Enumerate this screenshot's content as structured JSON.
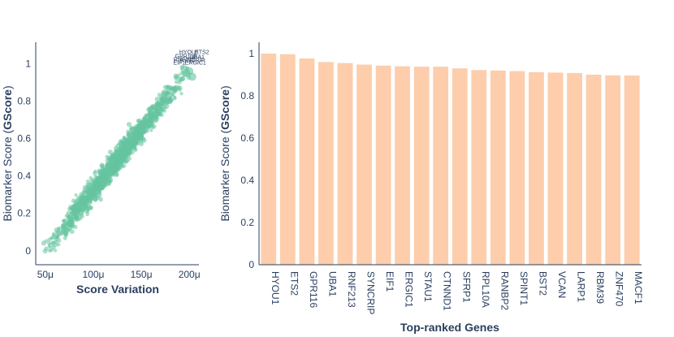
{
  "chart_data": [
    {
      "type": "scatter",
      "xlabel": "Score Variation",
      "ylabel_plain": "Biomarker Score (",
      "ylabel_bold": "GScore",
      "ylabel_close": ")",
      "xlim": [
        4e-05,
        0.00021
      ],
      "ylim": [
        -0.04,
        1.08
      ],
      "x_ticks": [
        {
          "value": 5e-05,
          "label": "50μ"
        },
        {
          "value": 0.0001,
          "label": "100μ"
        },
        {
          "value": 0.00015,
          "label": "150μ"
        },
        {
          "value": 0.0002,
          "label": "200μ"
        }
      ],
      "y_ticks": [
        {
          "value": 0,
          "label": "0"
        },
        {
          "value": 0.2,
          "label": "0.2"
        },
        {
          "value": 0.4,
          "label": "0.4"
        },
        {
          "value": 0.6,
          "label": "0.6"
        },
        {
          "value": 0.8,
          "label": "0.8"
        },
        {
          "value": 1,
          "label": "1"
        }
      ],
      "marker_color": "#66c5a0",
      "point_count": 1400,
      "trend": {
        "x_start": 5e-05,
        "y_start": 0.0,
        "x_end": 0.0002,
        "y_end": 0.97
      },
      "highlight_points": [
        {
          "x": 0.000203,
          "y": 0.93
        },
        {
          "x": 0.0002,
          "y": 0.96
        },
        {
          "x": 0.000197,
          "y": 0.95
        },
        {
          "x": 0.000195,
          "y": 0.97
        }
      ],
      "annotations": [
        "HYOU1",
        "ETS2",
        "GPR116",
        "UBA1",
        "RNF213",
        "SYNCRIP",
        "EIF1",
        "ERGIC1"
      ]
    },
    {
      "type": "bar",
      "xlabel": "Top-ranked Genes",
      "ylabel_plain": "Biomarker Score (",
      "ylabel_bold": "GScore",
      "ylabel_close": ")",
      "ylim": [
        0,
        1.05
      ],
      "bar_color": "#fdcdac",
      "y_ticks": [
        {
          "value": 0,
          "label": "0"
        },
        {
          "value": 0.2,
          "label": "0.2"
        },
        {
          "value": 0.4,
          "label": "0.4"
        },
        {
          "value": 0.6,
          "label": "0.6"
        },
        {
          "value": 0.8,
          "label": "0.8"
        },
        {
          "value": 1,
          "label": "1"
        }
      ],
      "categories": [
        "HYOU1",
        "ETS2",
        "GPR116",
        "UBA1",
        "RNF213",
        "SYNCRIP",
        "EIF1",
        "ERGIC1",
        "STAU1",
        "CTNND1",
        "SFRP1",
        "RPL10A",
        "RANBP2",
        "SPINT1",
        "BST2",
        "VCAN",
        "LARP1",
        "RBM39",
        "ZNF470",
        "MACF1"
      ],
      "values": [
        1.0,
        0.997,
        0.977,
        0.96,
        0.955,
        0.948,
        0.943,
        0.94,
        0.938,
        0.938,
        0.93,
        0.922,
        0.92,
        0.917,
        0.912,
        0.91,
        0.908,
        0.9,
        0.897,
        0.896
      ]
    }
  ]
}
